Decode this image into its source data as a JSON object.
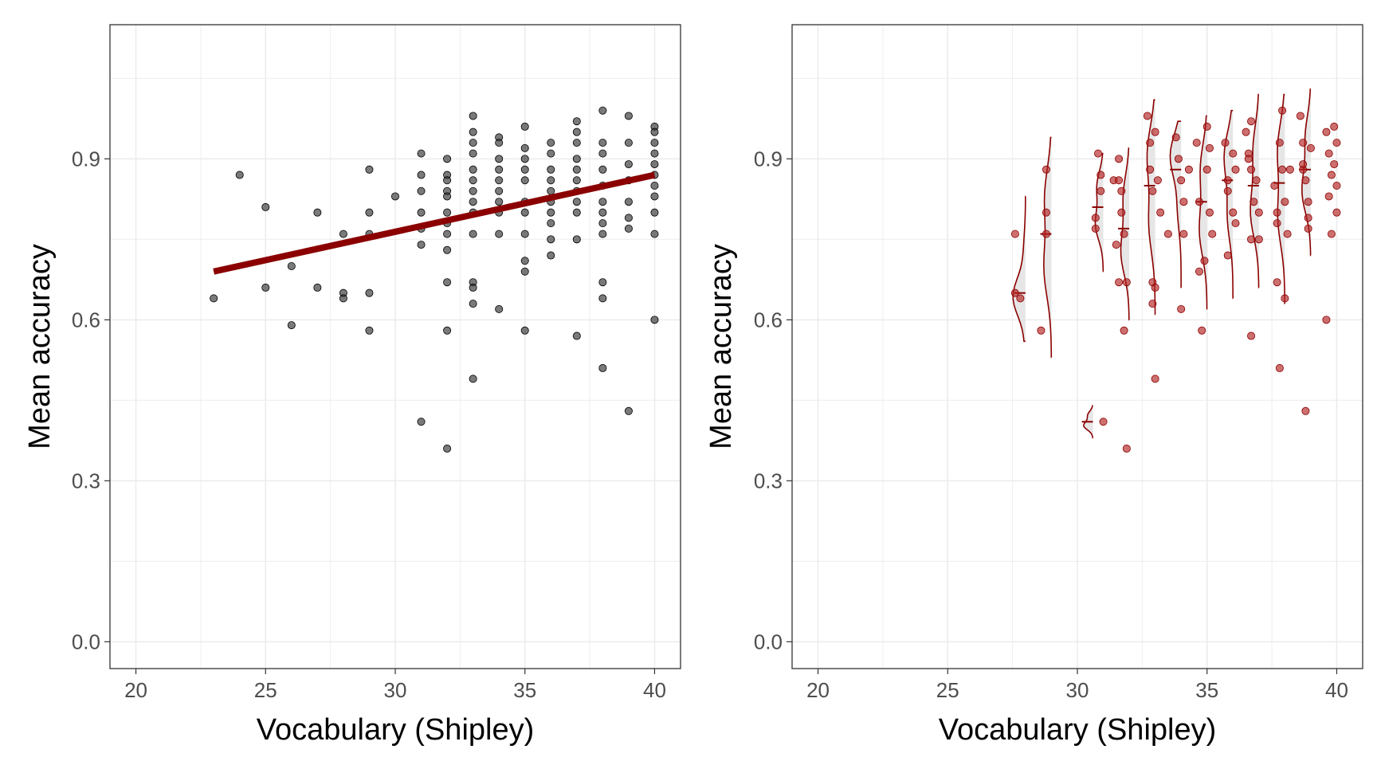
{
  "colors": {
    "grid": "#ebebeb",
    "panel_border": "#333333",
    "tick_text": "#4d4d4d",
    "point_dark": "#333333",
    "point_red": "#b22222",
    "accent": "#8b0000",
    "violin_fill": "#e6e6e6"
  },
  "chart_data": [
    {
      "type": "scatter",
      "xlabel": "Vocabulary (Shipley)",
      "ylabel": "Mean accuracy",
      "xlim": [
        19,
        41
      ],
      "ylim": [
        -0.05,
        1.15
      ],
      "xticks": [
        "20",
        "25",
        "30",
        "35",
        "40"
      ],
      "yticks": [
        "0.0",
        "0.3",
        "0.6",
        "0.9"
      ],
      "grid": true,
      "trend_line": {
        "x": [
          23,
          40
        ],
        "y": [
          0.69,
          0.87
        ],
        "color": "#8b0000"
      },
      "points": [
        [
          23,
          0.64
        ],
        [
          24,
          0.87
        ],
        [
          25,
          0.81
        ],
        [
          25,
          0.66
        ],
        [
          26,
          0.7
        ],
        [
          26,
          0.59
        ],
        [
          27,
          0.8
        ],
        [
          27,
          0.66
        ],
        [
          28,
          0.76
        ],
        [
          28,
          0.65
        ],
        [
          28,
          0.64
        ],
        [
          29,
          0.88
        ],
        [
          29,
          0.8
        ],
        [
          29,
          0.76
        ],
        [
          29,
          0.65
        ],
        [
          29,
          0.58
        ],
        [
          30,
          0.83
        ],
        [
          31,
          0.91
        ],
        [
          31,
          0.87
        ],
        [
          31,
          0.84
        ],
        [
          31,
          0.8
        ],
        [
          31,
          0.77
        ],
        [
          31,
          0.74
        ],
        [
          31,
          0.41
        ],
        [
          32,
          0.9
        ],
        [
          32,
          0.87
        ],
        [
          32,
          0.86
        ],
        [
          32,
          0.84
        ],
        [
          32,
          0.83
        ],
        [
          32,
          0.8
        ],
        [
          32,
          0.78
        ],
        [
          32,
          0.76
        ],
        [
          32,
          0.73
        ],
        [
          32,
          0.67
        ],
        [
          32,
          0.58
        ],
        [
          32,
          0.36
        ],
        [
          33,
          0.98
        ],
        [
          33,
          0.95
        ],
        [
          33,
          0.93
        ],
        [
          33,
          0.91
        ],
        [
          33,
          0.88
        ],
        [
          33,
          0.86
        ],
        [
          33,
          0.84
        ],
        [
          33,
          0.82
        ],
        [
          33,
          0.8
        ],
        [
          33,
          0.76
        ],
        [
          33,
          0.67
        ],
        [
          33,
          0.66
        ],
        [
          33,
          0.63
        ],
        [
          33,
          0.49
        ],
        [
          34,
          0.94
        ],
        [
          34,
          0.93
        ],
        [
          34,
          0.9
        ],
        [
          34,
          0.88
        ],
        [
          34,
          0.86
        ],
        [
          34,
          0.84
        ],
        [
          34,
          0.82
        ],
        [
          34,
          0.8
        ],
        [
          34,
          0.76
        ],
        [
          34,
          0.62
        ],
        [
          35,
          0.96
        ],
        [
          35,
          0.92
        ],
        [
          35,
          0.9
        ],
        [
          35,
          0.88
        ],
        [
          35,
          0.86
        ],
        [
          35,
          0.82
        ],
        [
          35,
          0.8
        ],
        [
          35,
          0.76
        ],
        [
          35,
          0.71
        ],
        [
          35,
          0.69
        ],
        [
          35,
          0.58
        ],
        [
          36,
          0.93
        ],
        [
          36,
          0.91
        ],
        [
          36,
          0.88
        ],
        [
          36,
          0.86
        ],
        [
          36,
          0.84
        ],
        [
          36,
          0.82
        ],
        [
          36,
          0.8
        ],
        [
          36,
          0.78
        ],
        [
          36,
          0.75
        ],
        [
          36,
          0.72
        ],
        [
          37,
          0.97
        ],
        [
          37,
          0.95
        ],
        [
          37,
          0.93
        ],
        [
          37,
          0.9
        ],
        [
          37,
          0.88
        ],
        [
          37,
          0.86
        ],
        [
          37,
          0.84
        ],
        [
          37,
          0.82
        ],
        [
          37,
          0.8
        ],
        [
          37,
          0.75
        ],
        [
          37,
          0.57
        ],
        [
          38,
          0.99
        ],
        [
          38,
          0.93
        ],
        [
          38,
          0.91
        ],
        [
          38,
          0.88
        ],
        [
          38,
          0.85
        ],
        [
          38,
          0.82
        ],
        [
          38,
          0.8
        ],
        [
          38,
          0.78
        ],
        [
          38,
          0.76
        ],
        [
          38,
          0.67
        ],
        [
          38,
          0.64
        ],
        [
          38,
          0.51
        ],
        [
          39,
          0.98
        ],
        [
          39,
          0.93
        ],
        [
          39,
          0.89
        ],
        [
          39,
          0.86
        ],
        [
          39,
          0.82
        ],
        [
          39,
          0.79
        ],
        [
          39,
          0.77
        ],
        [
          39,
          0.43
        ],
        [
          40,
          0.96
        ],
        [
          40,
          0.95
        ],
        [
          40,
          0.93
        ],
        [
          40,
          0.91
        ],
        [
          40,
          0.89
        ],
        [
          40,
          0.87
        ],
        [
          40,
          0.85
        ],
        [
          40,
          0.83
        ],
        [
          40,
          0.8
        ],
        [
          40,
          0.76
        ],
        [
          40,
          0.6
        ]
      ]
    },
    {
      "type": "scatter",
      "xlabel": "Vocabulary (Shipley)",
      "ylabel": "Mean accuracy",
      "xlim": [
        19,
        41
      ],
      "ylim": [
        -0.05,
        1.15
      ],
      "xticks": [
        "20",
        "25",
        "30",
        "35",
        "40"
      ],
      "yticks": [
        "0.0",
        "0.3",
        "0.6",
        "0.9"
      ],
      "grid": true,
      "violins": [
        {
          "x": 28,
          "ymin": 0.56,
          "ymax": 0.83,
          "median": 0.65
        },
        {
          "x": 29,
          "ymin": 0.53,
          "ymax": 0.94,
          "median": 0.76
        },
        {
          "x": 31,
          "ymin": 0.69,
          "ymax": 0.91,
          "median": 0.81
        },
        {
          "x": 31,
          "ymin": 0.38,
          "ymax": 0.44,
          "median": 0.41
        },
        {
          "x": 32,
          "ymin": 0.6,
          "ymax": 0.92,
          "median": 0.77
        },
        {
          "x": 33,
          "ymin": 0.61,
          "ymax": 1.01,
          "median": 0.85
        },
        {
          "x": 34,
          "ymin": 0.66,
          "ymax": 0.97,
          "median": 0.88
        },
        {
          "x": 35,
          "ymin": 0.62,
          "ymax": 0.98,
          "median": 0.82
        },
        {
          "x": 36,
          "ymin": 0.64,
          "ymax": 0.99,
          "median": 0.86
        },
        {
          "x": 37,
          "ymin": 0.66,
          "ymax": 1.02,
          "median": 0.85
        },
        {
          "x": 38,
          "ymin": 0.63,
          "ymax": 1.02,
          "median": 0.855
        },
        {
          "x": 39,
          "ymin": 0.72,
          "ymax": 1.03,
          "median": 0.88
        }
      ],
      "points": [
        [
          27.6,
          0.76
        ],
        [
          27.6,
          0.65
        ],
        [
          27.8,
          0.64
        ],
        [
          28.6,
          0.58
        ],
        [
          28.8,
          0.88
        ],
        [
          28.8,
          0.8
        ],
        [
          28.8,
          0.76
        ],
        [
          30.7,
          0.79
        ],
        [
          30.7,
          0.77
        ],
        [
          30.8,
          0.91
        ],
        [
          30.9,
          0.87
        ],
        [
          30.9,
          0.84
        ],
        [
          31.0,
          0.41
        ],
        [
          31.4,
          0.86
        ],
        [
          31.5,
          0.74
        ],
        [
          31.6,
          0.67
        ],
        [
          31.6,
          0.9
        ],
        [
          31.6,
          0.86
        ],
        [
          31.7,
          0.84
        ],
        [
          31.7,
          0.8
        ],
        [
          31.8,
          0.58
        ],
        [
          31.8,
          0.76
        ],
        [
          31.9,
          0.36
        ],
        [
          31.9,
          0.67
        ],
        [
          32.7,
          0.98
        ],
        [
          32.8,
          0.93
        ],
        [
          32.8,
          0.88
        ],
        [
          32.9,
          0.84
        ],
        [
          32.9,
          0.67
        ],
        [
          32.9,
          0.63
        ],
        [
          33.0,
          0.95
        ],
        [
          33.0,
          0.49
        ],
        [
          33.1,
          0.86
        ],
        [
          33.0,
          0.66
        ],
        [
          33.2,
          0.8
        ],
        [
          33.5,
          0.76
        ],
        [
          33.8,
          0.94
        ],
        [
          33.9,
          0.9
        ],
        [
          34.0,
          0.86
        ],
        [
          34.0,
          0.62
        ],
        [
          34.1,
          0.82
        ],
        [
          34.1,
          0.76
        ],
        [
          34.3,
          0.88
        ],
        [
          34.6,
          0.93
        ],
        [
          34.7,
          0.82
        ],
        [
          34.7,
          0.69
        ],
        [
          34.8,
          0.58
        ],
        [
          34.9,
          0.71
        ],
        [
          35.0,
          0.88
        ],
        [
          35.0,
          0.96
        ],
        [
          35.1,
          0.92
        ],
        [
          35.1,
          0.8
        ],
        [
          35.2,
          0.76
        ],
        [
          35.7,
          0.93
        ],
        [
          35.8,
          0.86
        ],
        [
          35.8,
          0.84
        ],
        [
          35.8,
          0.72
        ],
        [
          36.0,
          0.91
        ],
        [
          36.0,
          0.8
        ],
        [
          36.1,
          0.88
        ],
        [
          36.1,
          0.78
        ],
        [
          36.5,
          0.95
        ],
        [
          36.6,
          0.91
        ],
        [
          36.6,
          0.9
        ],
        [
          36.7,
          0.97
        ],
        [
          36.7,
          0.88
        ],
        [
          36.7,
          0.75
        ],
        [
          36.7,
          0.57
        ],
        [
          36.8,
          0.82
        ],
        [
          36.9,
          0.86
        ],
        [
          37.0,
          0.75
        ],
        [
          37.0,
          0.8
        ],
        [
          37.6,
          0.85
        ],
        [
          37.7,
          0.8
        ],
        [
          37.7,
          0.78
        ],
        [
          37.7,
          0.67
        ],
        [
          37.8,
          0.51
        ],
        [
          37.8,
          0.93
        ],
        [
          37.9,
          0.88
        ],
        [
          37.9,
          0.99
        ],
        [
          38.0,
          0.82
        ],
        [
          38.0,
          0.64
        ],
        [
          38.1,
          0.76
        ],
        [
          38.2,
          0.88
        ],
        [
          38.6,
          0.98
        ],
        [
          38.7,
          0.93
        ],
        [
          38.7,
          0.88
        ],
        [
          38.8,
          0.43
        ],
        [
          38.8,
          0.86
        ],
        [
          38.9,
          0.82
        ],
        [
          38.9,
          0.79
        ],
        [
          38.9,
          0.77
        ],
        [
          38.7,
          0.89
        ],
        [
          39.0,
          0.92
        ],
        [
          39.6,
          0.95
        ],
        [
          39.6,
          0.6
        ],
        [
          39.7,
          0.91
        ],
        [
          39.7,
          0.83
        ],
        [
          39.8,
          0.87
        ],
        [
          39.8,
          0.76
        ],
        [
          39.9,
          0.89
        ],
        [
          39.9,
          0.96
        ],
        [
          40.0,
          0.93
        ],
        [
          40.0,
          0.85
        ],
        [
          40.0,
          0.8
        ]
      ]
    }
  ]
}
